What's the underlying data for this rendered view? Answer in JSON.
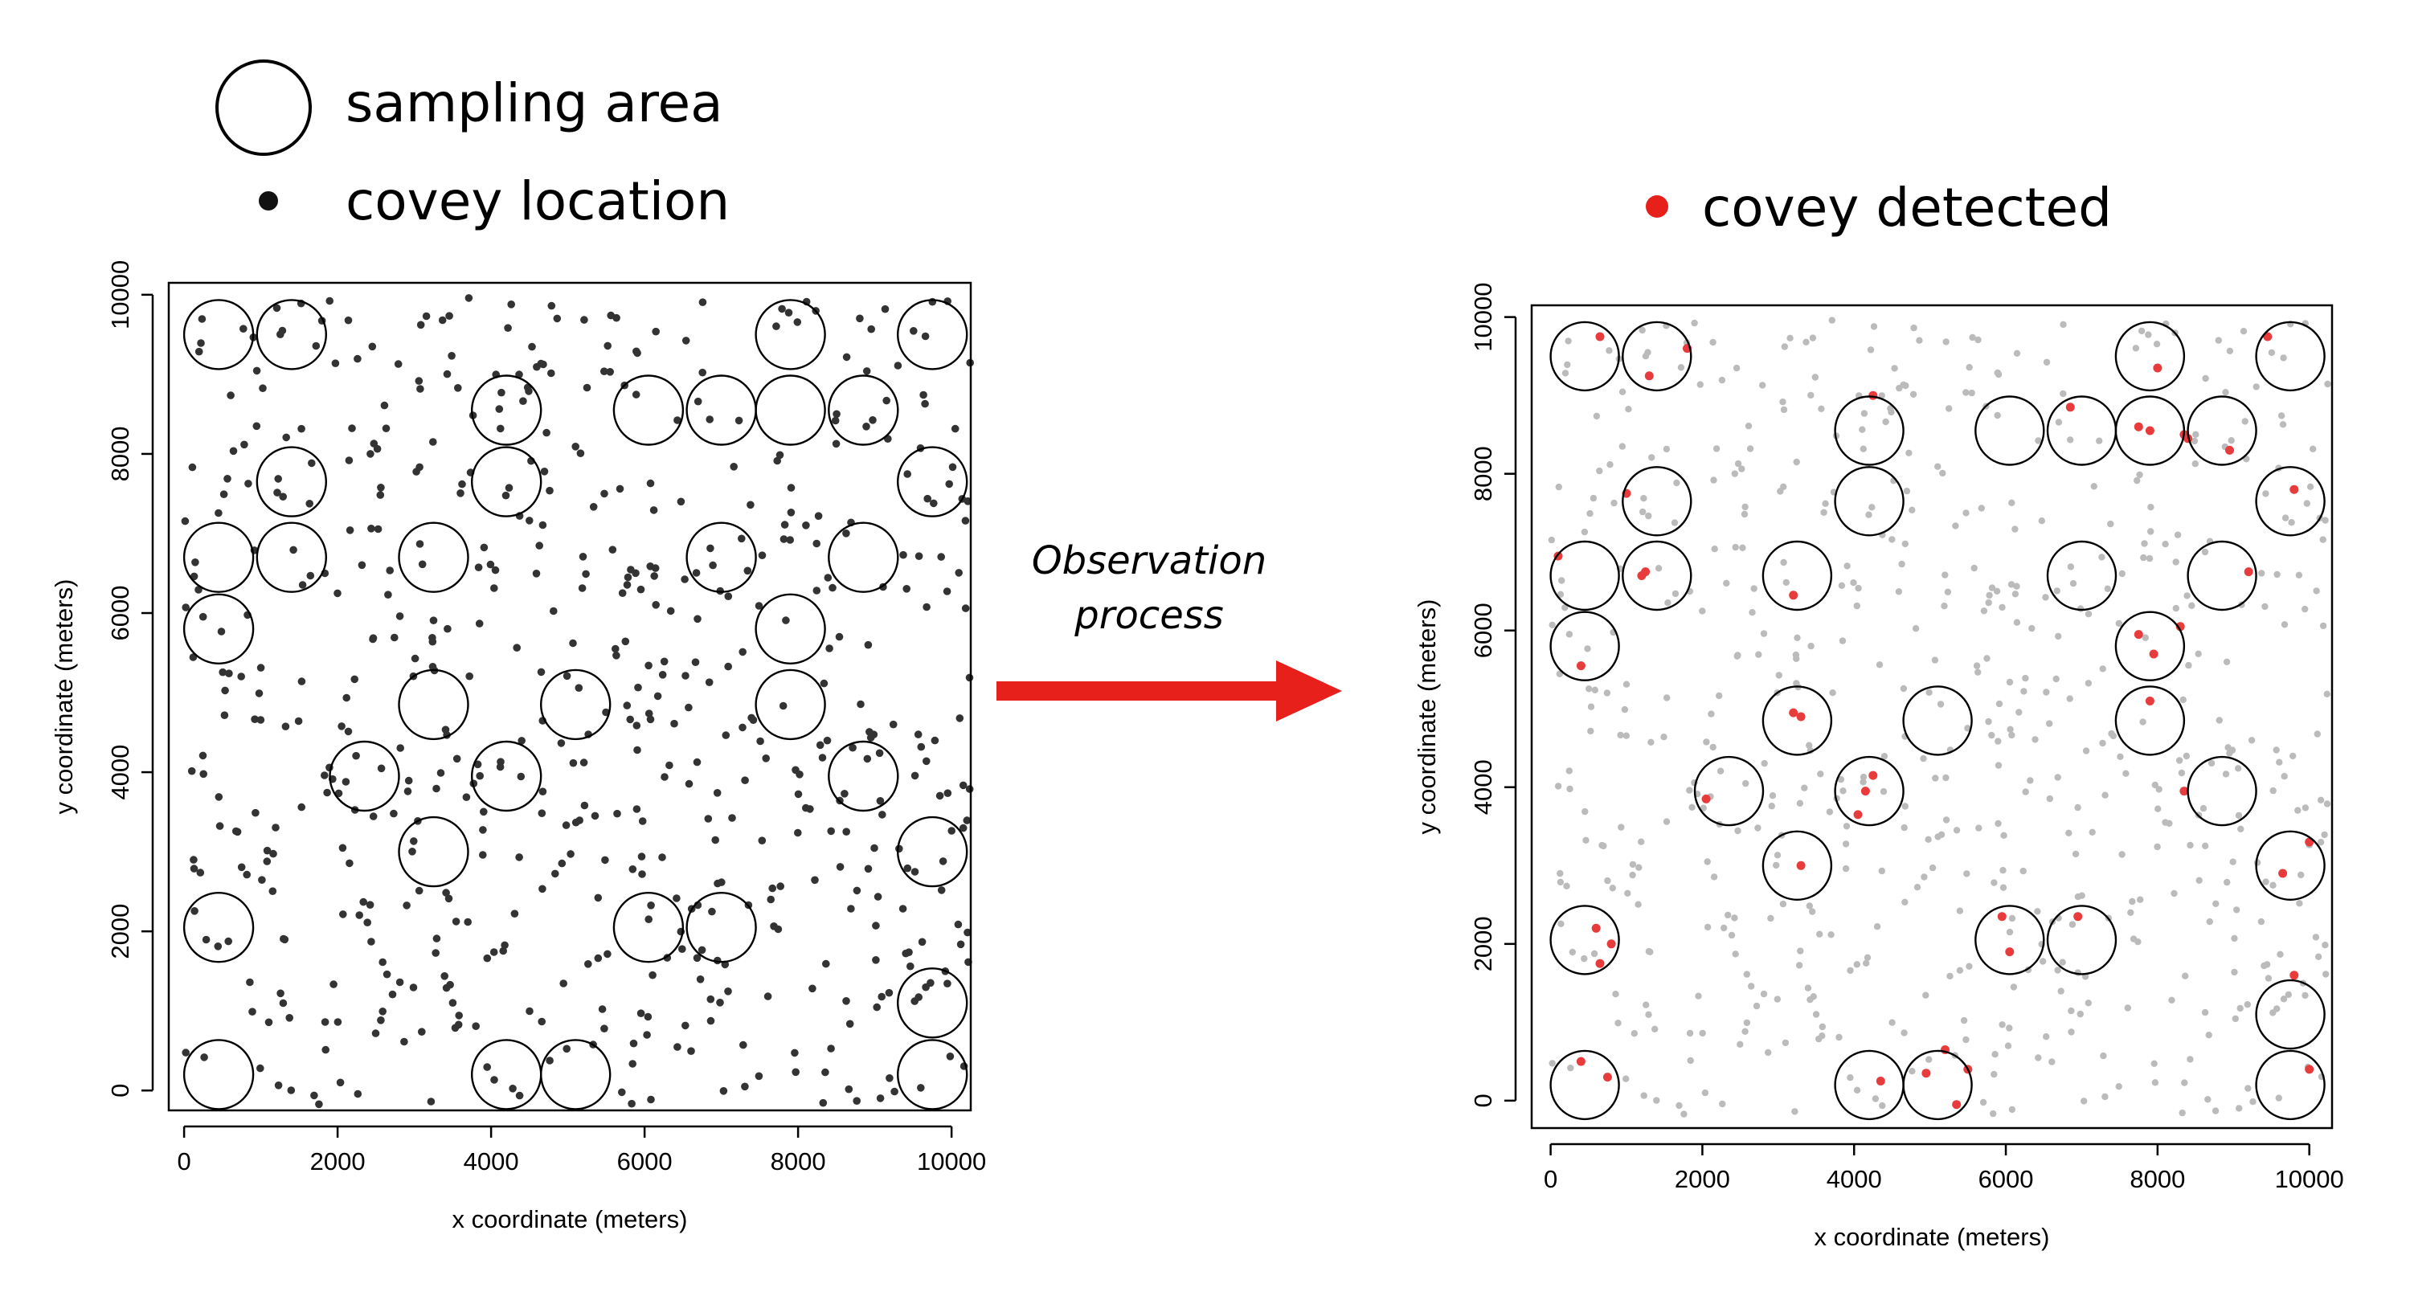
{
  "legend": {
    "sampling_area_label": "sampling area",
    "covey_location_label": "covey location",
    "covey_detected_label": "covey detected"
  },
  "arrow": {
    "label_line1": "Observation",
    "label_line2": "process",
    "color": "#e8201c"
  },
  "colors": {
    "covey_location": "#333333",
    "covey_background": "#bbbbbb",
    "covey_detected": "#e83b3b"
  },
  "chart_data": [
    {
      "type": "scatter",
      "name": "all-coveys",
      "xlabel": "x coordinate (meters)",
      "ylabel": "y coordinate (meters)",
      "xlim": [
        -200,
        10250
      ],
      "ylim": [
        -250,
        10150
      ],
      "xticks": [
        0,
        2000,
        4000,
        6000,
        8000,
        10000
      ],
      "yticks": [
        0,
        2000,
        4000,
        6000,
        8000,
        10000
      ],
      "sampling_area_radius": 450,
      "sampling_areas": [
        [
          450,
          9500
        ],
        [
          1400,
          9500
        ],
        [
          7900,
          9500
        ],
        [
          9750,
          9500
        ],
        [
          4200,
          8550
        ],
        [
          6050,
          8550
        ],
        [
          7000,
          8550
        ],
        [
          7900,
          8550
        ],
        [
          8850,
          8550
        ],
        [
          1400,
          7650
        ],
        [
          4200,
          7650
        ],
        [
          9750,
          7650
        ],
        [
          450,
          6700
        ],
        [
          1400,
          6700
        ],
        [
          3250,
          6700
        ],
        [
          7000,
          6700
        ],
        [
          8850,
          6700
        ],
        [
          450,
          5800
        ],
        [
          7900,
          5800
        ],
        [
          3250,
          4850
        ],
        [
          5100,
          4850
        ],
        [
          7900,
          4850
        ],
        [
          2350,
          3950
        ],
        [
          4200,
          3950
        ],
        [
          8850,
          3950
        ],
        [
          3250,
          3000
        ],
        [
          9750,
          3000
        ],
        [
          450,
          2050
        ],
        [
          6050,
          2050
        ],
        [
          7000,
          2050
        ],
        [
          9750,
          1100
        ],
        [
          450,
          200
        ],
        [
          4200,
          200
        ],
        [
          5100,
          200
        ],
        [
          9750,
          200
        ]
      ],
      "point_count": 600
    },
    {
      "type": "scatter",
      "name": "detected-coveys",
      "xlabel": "x coordinate (meters)",
      "ylabel": "y coordinate (meters)",
      "xlim": [
        -250,
        10300
      ],
      "ylim": [
        -350,
        10150
      ],
      "xticks": [
        0,
        2000,
        4000,
        6000,
        8000,
        10000
      ],
      "yticks": [
        0,
        2000,
        4000,
        6000,
        8000,
        10000
      ],
      "sampling_area_radius": 450,
      "sampling_areas": [
        [
          450,
          9500
        ],
        [
          1400,
          9500
        ],
        [
          7900,
          9500
        ],
        [
          9750,
          9500
        ],
        [
          4200,
          8550
        ],
        [
          6050,
          8550
        ],
        [
          7000,
          8550
        ],
        [
          7900,
          8550
        ],
        [
          8850,
          8550
        ],
        [
          1400,
          7650
        ],
        [
          4200,
          7650
        ],
        [
          9750,
          7650
        ],
        [
          450,
          6700
        ],
        [
          1400,
          6700
        ],
        [
          3250,
          6700
        ],
        [
          7000,
          6700
        ],
        [
          8850,
          6700
        ],
        [
          450,
          5800
        ],
        [
          7900,
          5800
        ],
        [
          3250,
          4850
        ],
        [
          5100,
          4850
        ],
        [
          7900,
          4850
        ],
        [
          2350,
          3950
        ],
        [
          4200,
          3950
        ],
        [
          8850,
          3950
        ],
        [
          3250,
          3000
        ],
        [
          9750,
          3000
        ],
        [
          450,
          2050
        ],
        [
          6050,
          2050
        ],
        [
          7000,
          2050
        ],
        [
          9750,
          1100
        ],
        [
          450,
          200
        ],
        [
          4200,
          200
        ],
        [
          5100,
          200
        ],
        [
          9750,
          200
        ]
      ],
      "detected": [
        [
          650,
          9750
        ],
        [
          1800,
          9600
        ],
        [
          1300,
          9250
        ],
        [
          4250,
          9000
        ],
        [
          6850,
          8850
        ],
        [
          7750,
          8600
        ],
        [
          7900,
          8550
        ],
        [
          8350,
          8500
        ],
        [
          8400,
          8450
        ],
        [
          8950,
          8300
        ],
        [
          8000,
          9350
        ],
        [
          9450,
          9750
        ],
        [
          1000,
          7750
        ],
        [
          9800,
          7800
        ],
        [
          100,
          6950
        ],
        [
          1250,
          6750
        ],
        [
          1200,
          6700
        ],
        [
          3200,
          6450
        ],
        [
          9200,
          6750
        ],
        [
          8300,
          6050
        ],
        [
          7750,
          5950
        ],
        [
          7950,
          5700
        ],
        [
          400,
          5550
        ],
        [
          3200,
          4950
        ],
        [
          3300,
          4900
        ],
        [
          7900,
          5100
        ],
        [
          4250,
          4150
        ],
        [
          4150,
          3950
        ],
        [
          2050,
          3850
        ],
        [
          8350,
          3950
        ],
        [
          4050,
          3650
        ],
        [
          3300,
          3000
        ],
        [
          9650,
          2900
        ],
        [
          10000,
          3300
        ],
        [
          600,
          2200
        ],
        [
          800,
          2000
        ],
        [
          650,
          1750
        ],
        [
          5950,
          2350
        ],
        [
          6050,
          1900
        ],
        [
          6950,
          2350
        ],
        [
          9800,
          1600
        ],
        [
          400,
          500
        ],
        [
          750,
          300
        ],
        [
          5200,
          650
        ],
        [
          5500,
          400
        ],
        [
          4950,
          350
        ],
        [
          4350,
          250
        ],
        [
          5350,
          -50
        ],
        [
          10000,
          400
        ]
      ],
      "point_count": 600
    }
  ]
}
